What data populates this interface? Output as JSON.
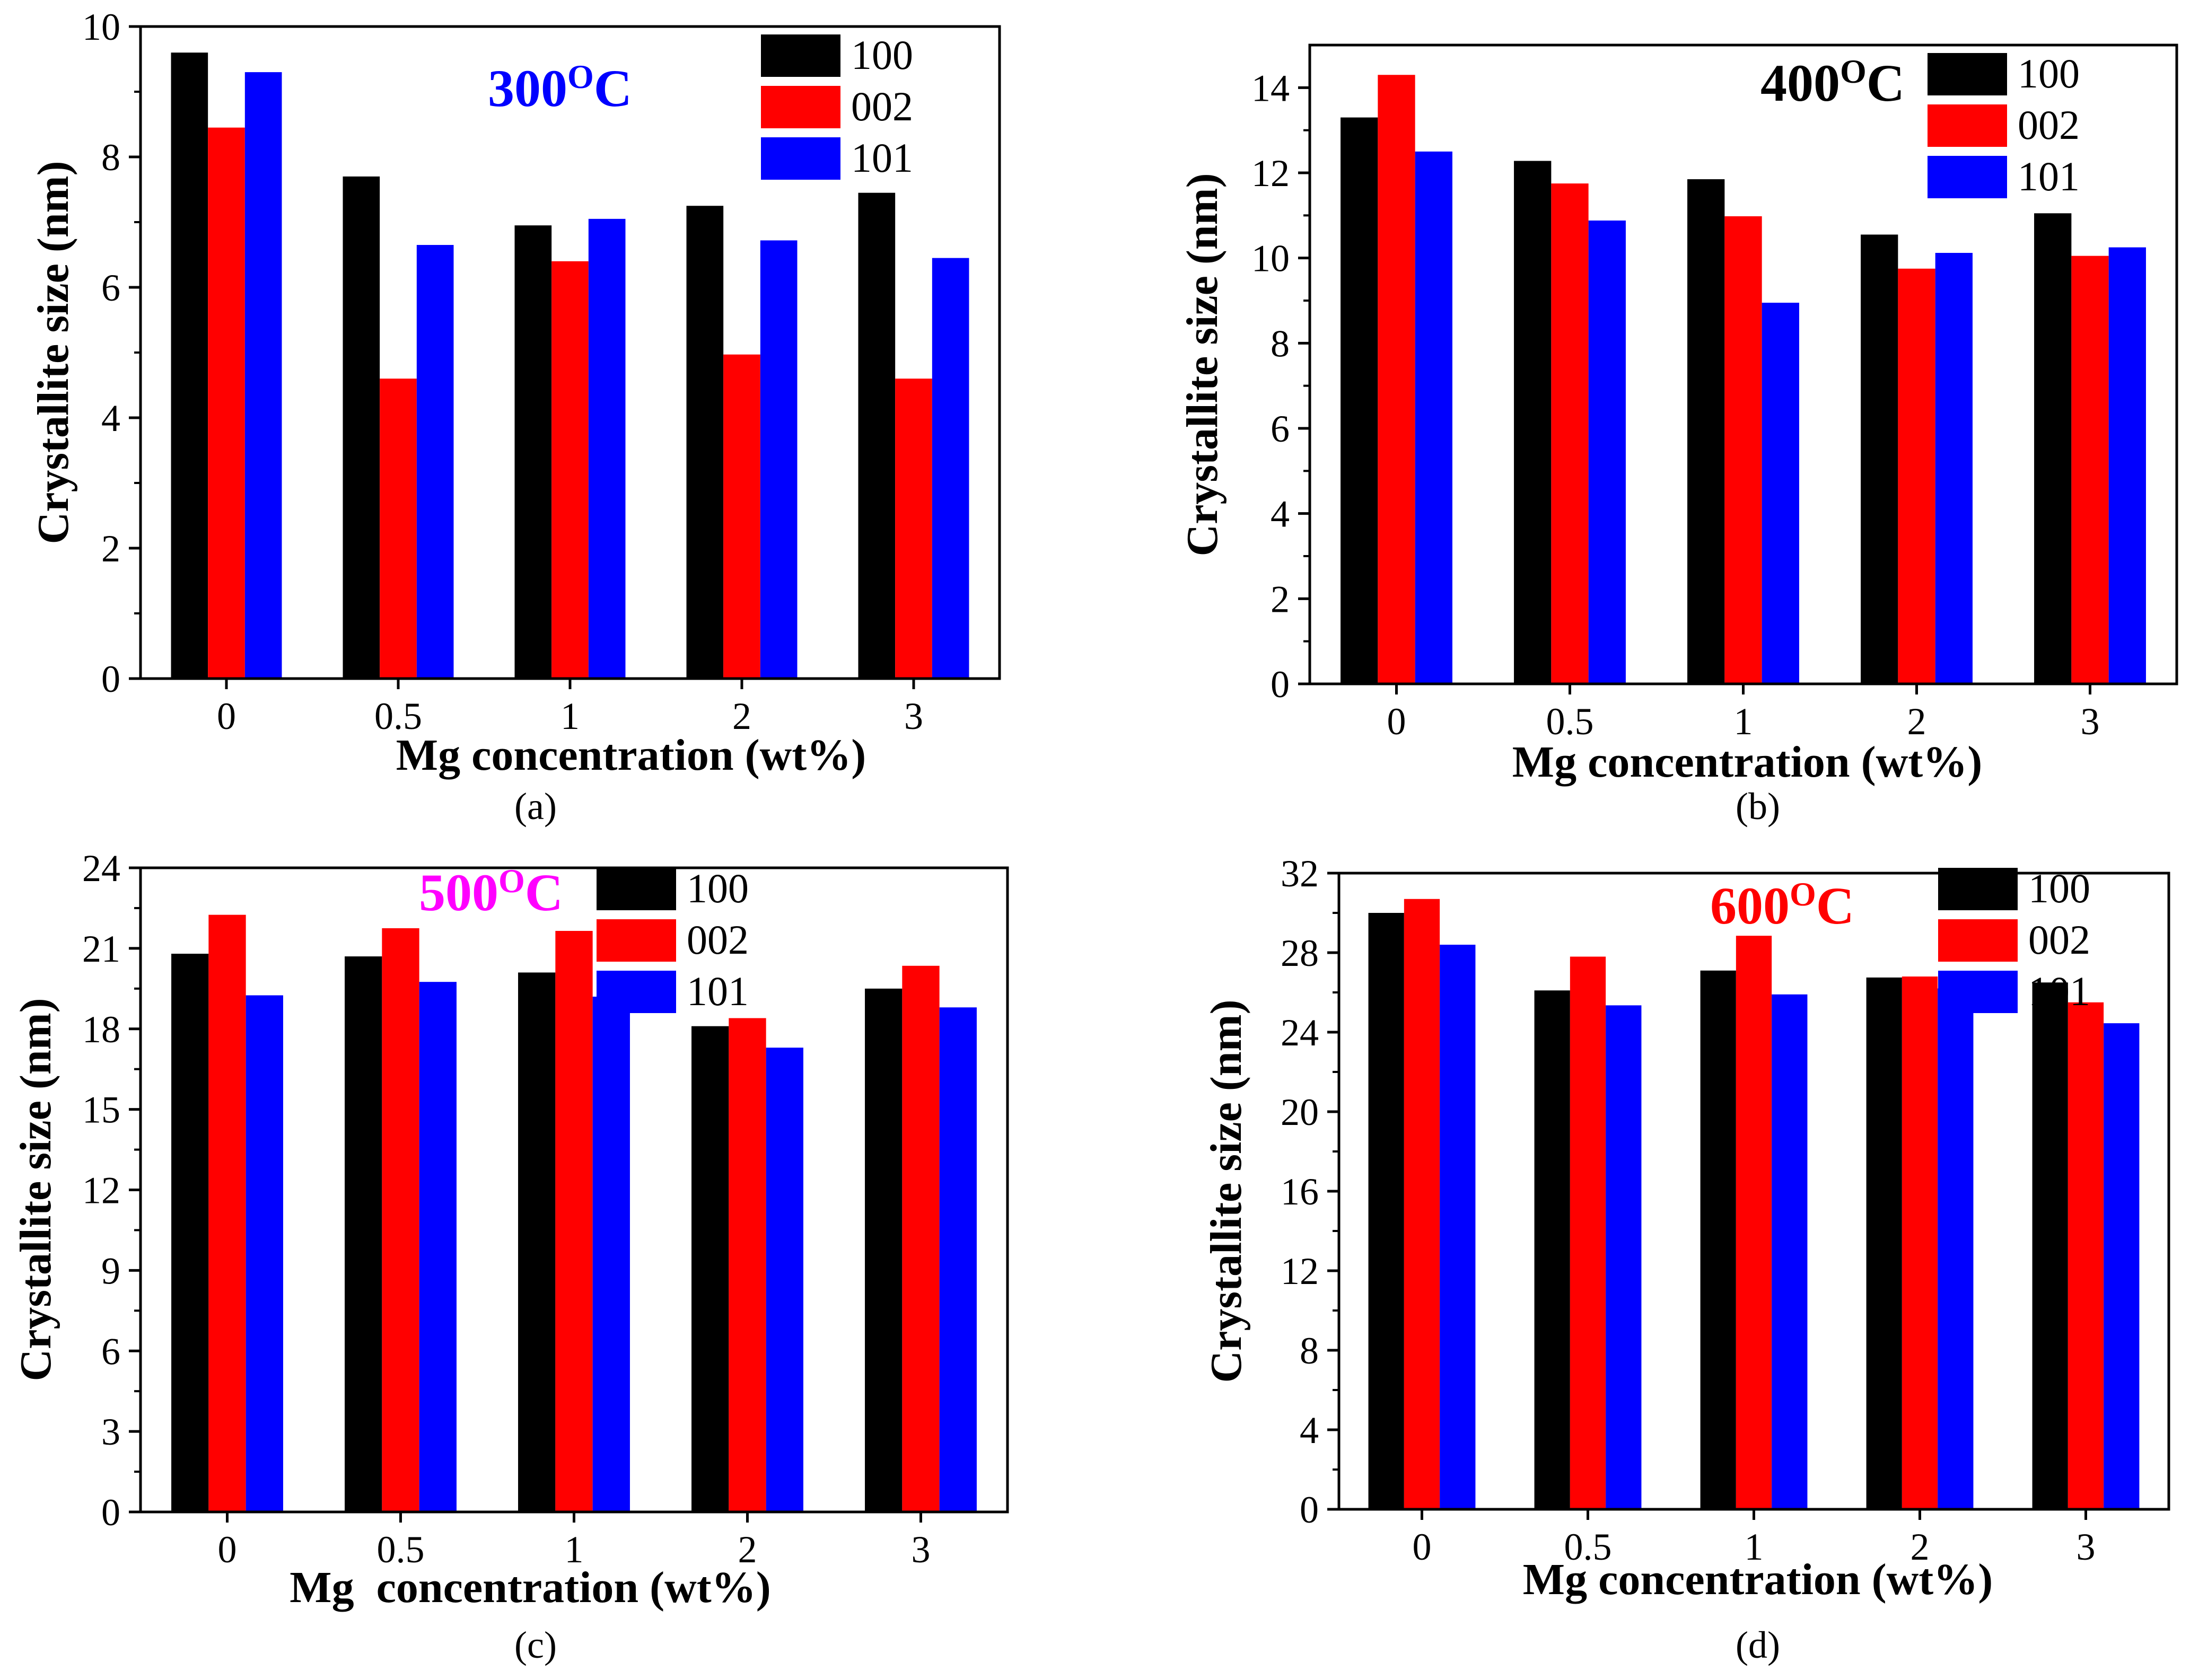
{
  "legend_labels": [
    "100",
    "002",
    "101"
  ],
  "series_colors": [
    "#000000",
    "#ff0000",
    "#0000ff"
  ],
  "chart_data": [
    {
      "type": "bar",
      "panel_label": "(a)",
      "title": "300",
      "title_sup": "O",
      "title_unit": "C",
      "title_color": "#0000ff",
      "xlabel": "Mg concentration (wt%)",
      "ylabel": "Crystallite size (nm)",
      "categories": [
        "0",
        "0.5",
        "1",
        "2",
        "3"
      ],
      "ylim": [
        0,
        10
      ],
      "yticks": [
        "0",
        "2",
        "4",
        "6",
        "8",
        "10"
      ],
      "legend_position": "top-right",
      "grid": false,
      "series": [
        {
          "name": "100",
          "color": "#000000",
          "values": [
            9.6,
            7.7,
            6.95,
            7.25,
            7.45
          ]
        },
        {
          "name": "002",
          "color": "#ff0000",
          "values": [
            8.45,
            4.6,
            6.4,
            4.97,
            4.6
          ]
        },
        {
          "name": "101",
          "color": "#0000ff",
          "values": [
            9.3,
            6.65,
            7.05,
            6.72,
            6.45
          ]
        }
      ]
    },
    {
      "type": "bar",
      "panel_label": "(b)",
      "title": "400",
      "title_sup": "O",
      "title_unit": "C",
      "title_color": "#000000",
      "xlabel": "Mg concentration (wt%)",
      "ylabel": "Crystallite size (nm)",
      "categories": [
        "0",
        "0.5",
        "1",
        "2",
        "3"
      ],
      "ylim": [
        0,
        15
      ],
      "yticks": [
        "0",
        "2",
        "4",
        "6",
        "8",
        "10",
        "12",
        "14"
      ],
      "legend_position": "top-right",
      "grid": false,
      "series": [
        {
          "name": "100",
          "color": "#000000",
          "values": [
            13.3,
            12.28,
            11.85,
            10.55,
            11.05
          ]
        },
        {
          "name": "002",
          "color": "#ff0000",
          "values": [
            14.3,
            11.75,
            10.98,
            9.75,
            10.05
          ]
        },
        {
          "name": "101",
          "color": "#0000ff",
          "values": [
            12.5,
            10.88,
            8.95,
            10.12,
            10.25
          ]
        }
      ]
    },
    {
      "type": "bar",
      "panel_label": "(c)",
      "title": "500",
      "title_sup": "O",
      "title_unit": "C",
      "title_color": "#ff00ff",
      "xlabel": "Mg  concentration (wt%)",
      "ylabel": "Crystallite size (nm)",
      "categories": [
        "0",
        "0.5",
        "1",
        "2",
        "3"
      ],
      "ylim": [
        0,
        24
      ],
      "yticks": [
        "0",
        "3",
        "6",
        "9",
        "12",
        "15",
        "18",
        "21",
        "24"
      ],
      "legend_position": "top-right",
      "grid": false,
      "series": [
        {
          "name": "100",
          "color": "#000000",
          "values": [
            20.8,
            20.7,
            20.1,
            18.1,
            19.5
          ]
        },
        {
          "name": "002",
          "color": "#ff0000",
          "values": [
            22.25,
            21.75,
            21.65,
            18.4,
            20.35
          ]
        },
        {
          "name": "101",
          "color": "#0000ff",
          "values": [
            19.25,
            19.75,
            19.2,
            17.3,
            18.8
          ]
        }
      ]
    },
    {
      "type": "bar",
      "panel_label": "(d)",
      "title": "600",
      "title_sup": "O",
      "title_unit": "C",
      "title_color": "#ff0000",
      "xlabel": "Mg concentration (wt%)",
      "ylabel": "Crystallite size (nm)",
      "categories": [
        "0",
        "0.5",
        "1",
        "2",
        "3"
      ],
      "ylim": [
        0,
        32
      ],
      "yticks": [
        "0",
        "4",
        "8",
        "12",
        "16",
        "20",
        "24",
        "28",
        "32"
      ],
      "legend_position": "top-right",
      "grid": false,
      "series": [
        {
          "name": "100",
          "color": "#000000",
          "values": [
            30.0,
            26.1,
            27.1,
            26.75,
            26.5
          ]
        },
        {
          "name": "002",
          "color": "#ff0000",
          "values": [
            30.7,
            27.8,
            28.85,
            26.8,
            25.5
          ]
        },
        {
          "name": "101",
          "color": "#0000ff",
          "values": [
            28.4,
            25.35,
            25.9,
            26.2,
            24.45
          ]
        }
      ]
    }
  ]
}
